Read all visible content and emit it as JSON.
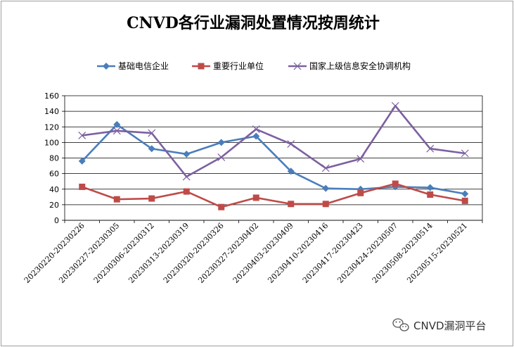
{
  "watermark": "CNVD漏洞平台",
  "colors": {
    "blue": "#4a7ebb",
    "red": "#be4b48",
    "purple": "#7d60a0"
  },
  "chart_data": {
    "type": "line",
    "title": "CNVD各行业漏洞处置情况按周统计",
    "xlabel": "",
    "ylabel": "",
    "ylim": [
      0,
      160
    ],
    "yticks": [
      0,
      20,
      40,
      60,
      80,
      100,
      120,
      140,
      160
    ],
    "grid": true,
    "legend_position": "top",
    "categories": [
      "20230220-20230226",
      "20230227-20230305",
      "20230306-20230312",
      "20230313-20230319",
      "20230320-20230326",
      "20230327-20230402",
      "20230403-20230409",
      "20230410-20230416",
      "20230417-20230423",
      "20230424-20230507",
      "20230508-20230514",
      "20230515-20230521"
    ],
    "series": [
      {
        "name": "基础电信企业",
        "color": "#4a7ebb",
        "marker": "diamond",
        "values": [
          76,
          123,
          92,
          85,
          100,
          108,
          63,
          41,
          40,
          43,
          42,
          34
        ]
      },
      {
        "name": "重要行业单位",
        "color": "#be4b48",
        "marker": "square",
        "values": [
          43,
          27,
          28,
          37,
          17,
          29,
          21,
          21,
          35,
          47,
          33,
          25
        ]
      },
      {
        "name": "国家上级信息安全协调机构",
        "color": "#7d60a0",
        "marker": "x",
        "values": [
          109,
          115,
          112,
          56,
          81,
          117,
          98,
          67,
          79,
          147,
          92,
          86
        ]
      }
    ]
  }
}
